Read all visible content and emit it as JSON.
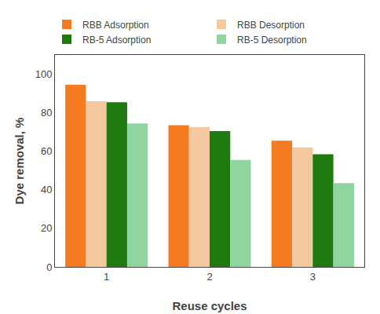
{
  "chart_data": {
    "type": "bar",
    "xlabel": "Reuse cycles",
    "ylabel": "Dye removal, %",
    "categories": [
      "1",
      "2",
      "3"
    ],
    "series": [
      {
        "name": "RBB Adsorption",
        "color": "#F47B20",
        "values": [
          94.5,
          73.5,
          65.5
        ]
      },
      {
        "name": "RBB Desorption",
        "color": "#F5C9A0",
        "values": [
          86.0,
          72.5,
          62.0
        ]
      },
      {
        "name": "RB-5 Adsorption",
        "color": "#1E7A0E",
        "values": [
          85.5,
          70.5,
          58.5
        ]
      },
      {
        "name": "RB-5 Desorption",
        "color": "#90D5A0",
        "values": [
          74.5,
          55.5,
          43.5
        ]
      }
    ],
    "ylim": [
      0,
      110
    ],
    "yticks": [
      0,
      20,
      40,
      60,
      80,
      100
    ],
    "grid": false,
    "legend": "upper right"
  }
}
